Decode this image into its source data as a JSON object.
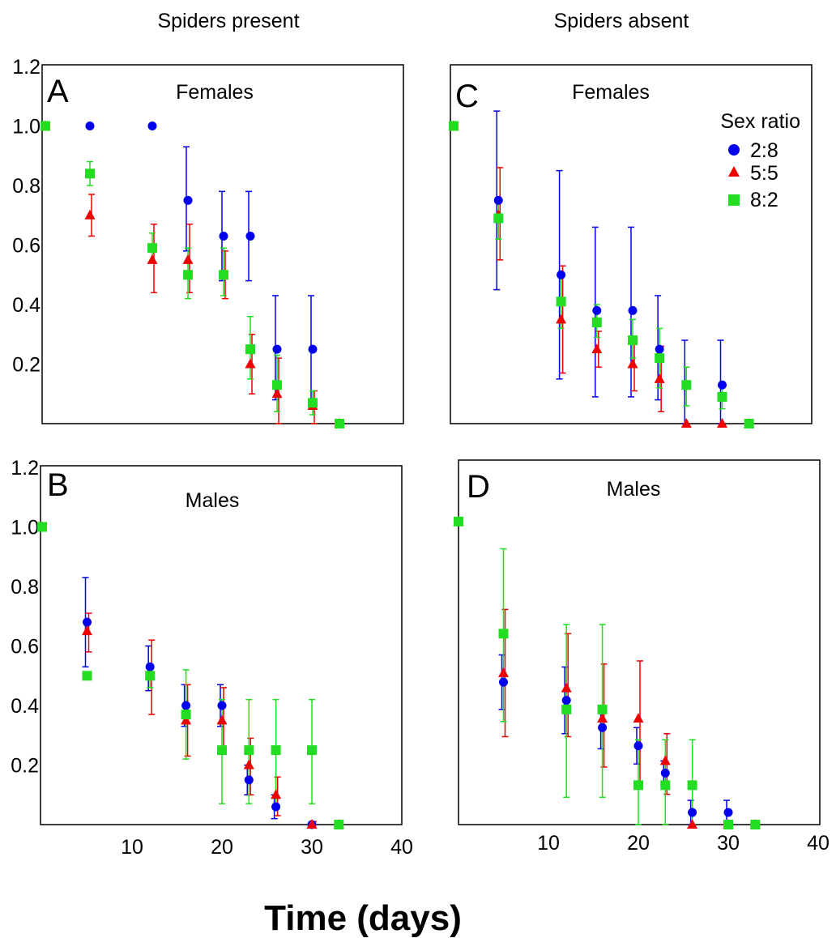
{
  "figure": {
    "column_titles": [
      "Spiders present",
      "Spiders absent"
    ],
    "xlabel": "Time (days)"
  },
  "chart_data": [
    {
      "panel": "A",
      "column": "Spiders present",
      "title": "Females",
      "type": "scatter",
      "xlim": [
        0,
        40
      ],
      "ylim": [
        0,
        1.2
      ],
      "yticks": [
        "1.2",
        "1.0",
        "0.8",
        "0.6",
        "0.4",
        "0.2"
      ],
      "xticks": [],
      "series": [
        {
          "name": "2:8",
          "color": "#0000ee",
          "marker": "circle",
          "points": [
            {
              "x": 0,
              "y": 1.0,
              "lo": 1.0,
              "hi": 1.0
            },
            {
              "x": 5,
              "y": 1.0,
              "lo": 1.0,
              "hi": 1.0
            },
            {
              "x": 12,
              "y": 1.0,
              "lo": 1.0,
              "hi": 1.0
            },
            {
              "x": 16,
              "y": 0.75,
              "lo": 0.58,
              "hi": 0.93
            },
            {
              "x": 20,
              "y": 0.63,
              "lo": 0.48,
              "hi": 0.78
            },
            {
              "x": 23,
              "y": 0.63,
              "lo": 0.48,
              "hi": 0.78
            },
            {
              "x": 26,
              "y": 0.25,
              "lo": 0.08,
              "hi": 0.43
            },
            {
              "x": 30,
              "y": 0.25,
              "lo": 0.08,
              "hi": 0.43
            },
            {
              "x": 33,
              "y": 0.0,
              "lo": 0.0,
              "hi": 0.0
            }
          ]
        },
        {
          "name": "5:5",
          "color": "#ee0000",
          "marker": "triangle",
          "points": [
            {
              "x": 0,
              "y": 1.0,
              "lo": 1.0,
              "hi": 1.0
            },
            {
              "x": 5,
              "y": 0.7,
              "lo": 0.63,
              "hi": 0.77
            },
            {
              "x": 12,
              "y": 0.55,
              "lo": 0.44,
              "hi": 0.67
            },
            {
              "x": 16,
              "y": 0.55,
              "lo": 0.44,
              "hi": 0.67
            },
            {
              "x": 20,
              "y": 0.5,
              "lo": 0.42,
              "hi": 0.58
            },
            {
              "x": 23,
              "y": 0.2,
              "lo": 0.1,
              "hi": 0.3
            },
            {
              "x": 26,
              "y": 0.1,
              "lo": 0.0,
              "hi": 0.22
            },
            {
              "x": 30,
              "y": 0.06,
              "lo": 0.0,
              "hi": 0.11
            },
            {
              "x": 33,
              "y": 0.0,
              "lo": 0.0,
              "hi": 0.0
            }
          ]
        },
        {
          "name": "8:2",
          "color": "#22dd22",
          "marker": "square",
          "points": [
            {
              "x": 0,
              "y": 1.0,
              "lo": 1.0,
              "hi": 1.0
            },
            {
              "x": 5,
              "y": 0.84,
              "lo": 0.8,
              "hi": 0.88
            },
            {
              "x": 12,
              "y": 0.59,
              "lo": 0.54,
              "hi": 0.64
            },
            {
              "x": 16,
              "y": 0.5,
              "lo": 0.42,
              "hi": 0.59
            },
            {
              "x": 20,
              "y": 0.5,
              "lo": 0.43,
              "hi": 0.59
            },
            {
              "x": 23,
              "y": 0.25,
              "lo": 0.15,
              "hi": 0.36
            },
            {
              "x": 26,
              "y": 0.13,
              "lo": 0.04,
              "hi": 0.23
            },
            {
              "x": 30,
              "y": 0.07,
              "lo": 0.03,
              "hi": 0.11
            },
            {
              "x": 33,
              "y": 0.0,
              "lo": 0.0,
              "hi": 0.0
            }
          ]
        }
      ]
    },
    {
      "panel": "B",
      "column": "Spiders present",
      "title": "Males",
      "type": "scatter",
      "xlim": [
        0,
        40
      ],
      "ylim": [
        0,
        1.2
      ],
      "yticks": [
        "1.2",
        "1.0",
        "0.8",
        "0.6",
        "0.4",
        "0.2"
      ],
      "xticks": [
        "10",
        "20",
        "30",
        "40"
      ],
      "series": [
        {
          "name": "2:8",
          "color": "#0000ee",
          "marker": "circle",
          "points": [
            {
              "x": 0,
              "y": 1.0,
              "lo": 1.0,
              "hi": 1.0
            },
            {
              "x": 5,
              "y": 0.68,
              "lo": 0.53,
              "hi": 0.83
            },
            {
              "x": 12,
              "y": 0.53,
              "lo": 0.45,
              "hi": 0.6
            },
            {
              "x": 16,
              "y": 0.4,
              "lo": 0.33,
              "hi": 0.47
            },
            {
              "x": 20,
              "y": 0.4,
              "lo": 0.33,
              "hi": 0.47
            },
            {
              "x": 23,
              "y": 0.15,
              "lo": 0.1,
              "hi": 0.2
            },
            {
              "x": 26,
              "y": 0.06,
              "lo": 0.02,
              "hi": 0.1
            },
            {
              "x": 30,
              "y": 0.0,
              "lo": 0.0,
              "hi": 0.0
            },
            {
              "x": 33,
              "y": 0.0,
              "lo": 0.0,
              "hi": 0.0
            }
          ]
        },
        {
          "name": "5:5",
          "color": "#ee0000",
          "marker": "triangle",
          "points": [
            {
              "x": 0,
              "y": 1.0,
              "lo": 1.0,
              "hi": 1.0
            },
            {
              "x": 5,
              "y": 0.65,
              "lo": 0.58,
              "hi": 0.71
            },
            {
              "x": 12,
              "y": 0.5,
              "lo": 0.37,
              "hi": 0.62
            },
            {
              "x": 16,
              "y": 0.35,
              "lo": 0.23,
              "hi": 0.47
            },
            {
              "x": 20,
              "y": 0.35,
              "lo": 0.25,
              "hi": 0.46
            },
            {
              "x": 23,
              "y": 0.2,
              "lo": 0.1,
              "hi": 0.29
            },
            {
              "x": 26,
              "y": 0.1,
              "lo": 0.03,
              "hi": 0.16
            },
            {
              "x": 30,
              "y": 0.0,
              "lo": 0.0,
              "hi": 0.01
            },
            {
              "x": 33,
              "y": 0.0,
              "lo": 0.0,
              "hi": 0.0
            }
          ]
        },
        {
          "name": "8:2",
          "color": "#22dd22",
          "marker": "square",
          "points": [
            {
              "x": 0,
              "y": 1.0,
              "lo": 1.0,
              "hi": 1.0
            },
            {
              "x": 5,
              "y": 0.5,
              "lo": 0.5,
              "hi": 0.5
            },
            {
              "x": 12,
              "y": 0.5,
              "lo": 0.46,
              "hi": 0.54
            },
            {
              "x": 16,
              "y": 0.37,
              "lo": 0.22,
              "hi": 0.52
            },
            {
              "x": 20,
              "y": 0.25,
              "lo": 0.07,
              "hi": 0.42
            },
            {
              "x": 23,
              "y": 0.25,
              "lo": 0.07,
              "hi": 0.42
            },
            {
              "x": 26,
              "y": 0.25,
              "lo": 0.07,
              "hi": 0.42
            },
            {
              "x": 30,
              "y": 0.25,
              "lo": 0.07,
              "hi": 0.42
            },
            {
              "x": 33,
              "y": 0.0,
              "lo": 0.0,
              "hi": 0.01
            }
          ]
        }
      ]
    },
    {
      "panel": "C",
      "column": "Spiders absent",
      "title": "Females",
      "type": "scatter",
      "xlim": [
        0,
        40
      ],
      "ylim": [
        0,
        1.2
      ],
      "yticks": [],
      "xticks": [],
      "legend": {
        "title": "Sex ratio",
        "placement": "top-right",
        "entries": [
          "2:8",
          "5:5",
          "8:2"
        ]
      },
      "series": [
        {
          "name": "2:8",
          "color": "#0000ee",
          "marker": "circle",
          "points": [
            {
              "x": 0,
              "y": 1.0,
              "lo": 1.0,
              "hi": 1.0
            },
            {
              "x": 5,
              "y": 0.75,
              "lo": 0.45,
              "hi": 1.05
            },
            {
              "x": 12,
              "y": 0.5,
              "lo": 0.15,
              "hi": 0.85
            },
            {
              "x": 16,
              "y": 0.38,
              "lo": 0.09,
              "hi": 0.66
            },
            {
              "x": 20,
              "y": 0.38,
              "lo": 0.09,
              "hi": 0.66
            },
            {
              "x": 23,
              "y": 0.25,
              "lo": 0.08,
              "hi": 0.43
            },
            {
              "x": 26,
              "y": 0.13,
              "lo": 0.0,
              "hi": 0.28
            },
            {
              "x": 30,
              "y": 0.13,
              "lo": 0.0,
              "hi": 0.28
            },
            {
              "x": 33,
              "y": 0.0,
              "lo": 0.0,
              "hi": 0.0
            }
          ]
        },
        {
          "name": "5:5",
          "color": "#ee0000",
          "marker": "triangle",
          "points": [
            {
              "x": 0,
              "y": 1.0,
              "lo": 1.0,
              "hi": 1.0
            },
            {
              "x": 5,
              "y": 0.7,
              "lo": 0.55,
              "hi": 0.86
            },
            {
              "x": 12,
              "y": 0.35,
              "lo": 0.17,
              "hi": 0.53
            },
            {
              "x": 16,
              "y": 0.25,
              "lo": 0.19,
              "hi": 0.31
            },
            {
              "x": 20,
              "y": 0.2,
              "lo": 0.11,
              "hi": 0.29
            },
            {
              "x": 23,
              "y": 0.15,
              "lo": 0.04,
              "hi": 0.26
            },
            {
              "x": 26,
              "y": 0.0,
              "lo": 0.0,
              "hi": 0.0
            },
            {
              "x": 30,
              "y": 0.0,
              "lo": 0.0,
              "hi": 0.0
            },
            {
              "x": 33,
              "y": 0.0,
              "lo": 0.0,
              "hi": 0.0
            }
          ]
        },
        {
          "name": "8:2",
          "color": "#22dd22",
          "marker": "square",
          "points": [
            {
              "x": 0,
              "y": 1.0,
              "lo": 1.0,
              "hi": 1.0
            },
            {
              "x": 5,
              "y": 0.69,
              "lo": 0.62,
              "hi": 0.76
            },
            {
              "x": 12,
              "y": 0.41,
              "lo": 0.32,
              "hi": 0.5
            },
            {
              "x": 16,
              "y": 0.34,
              "lo": 0.29,
              "hi": 0.4
            },
            {
              "x": 20,
              "y": 0.28,
              "lo": 0.22,
              "hi": 0.35
            },
            {
              "x": 23,
              "y": 0.22,
              "lo": 0.12,
              "hi": 0.32
            },
            {
              "x": 26,
              "y": 0.13,
              "lo": 0.06,
              "hi": 0.19
            },
            {
              "x": 30,
              "y": 0.09,
              "lo": 0.05,
              "hi": 0.13
            },
            {
              "x": 33,
              "y": 0.0,
              "lo": 0.0,
              "hi": 0.0
            }
          ]
        }
      ]
    },
    {
      "panel": "D",
      "column": "Spiders absent",
      "title": "Males",
      "type": "scatter",
      "xlim": [
        0,
        40
      ],
      "ylim": [
        0,
        1.2
      ],
      "yticks": [],
      "xticks": [
        "10",
        "20",
        "30",
        "40"
      ],
      "series": [
        {
          "name": "2:8",
          "color": "#0000ee",
          "marker": "circle",
          "points": [
            {
              "x": 0,
              "y": 1.0,
              "lo": 1.0,
              "hi": 1.0
            },
            {
              "x": 5,
              "y": 0.47,
              "lo": 0.38,
              "hi": 0.56
            },
            {
              "x": 12,
              "y": 0.41,
              "lo": 0.3,
              "hi": 0.52
            },
            {
              "x": 16,
              "y": 0.32,
              "lo": 0.25,
              "hi": 0.39
            },
            {
              "x": 20,
              "y": 0.26,
              "lo": 0.2,
              "hi": 0.32
            },
            {
              "x": 23,
              "y": 0.17,
              "lo": 0.13,
              "hi": 0.21
            },
            {
              "x": 26,
              "y": 0.04,
              "lo": 0.0,
              "hi": 0.08
            },
            {
              "x": 30,
              "y": 0.04,
              "lo": 0.0,
              "hi": 0.08
            },
            {
              "x": 33,
              "y": 0.0,
              "lo": 0.0,
              "hi": 0.0
            }
          ]
        },
        {
          "name": "5:5",
          "color": "#ee0000",
          "marker": "triangle",
          "points": [
            {
              "x": 0,
              "y": 1.0,
              "lo": 1.0,
              "hi": 1.0
            },
            {
              "x": 5,
              "y": 0.5,
              "lo": 0.29,
              "hi": 0.71
            },
            {
              "x": 12,
              "y": 0.45,
              "lo": 0.29,
              "hi": 0.63
            },
            {
              "x": 16,
              "y": 0.35,
              "lo": 0.19,
              "hi": 0.53
            },
            {
              "x": 20,
              "y": 0.35,
              "lo": 0.13,
              "hi": 0.54
            },
            {
              "x": 23,
              "y": 0.21,
              "lo": 0.1,
              "hi": 0.3
            },
            {
              "x": 26,
              "y": 0.0,
              "lo": 0.0,
              "hi": 0.0
            },
            {
              "x": 30,
              "y": 0.0,
              "lo": 0.0,
              "hi": 0.0
            },
            {
              "x": 33,
              "y": 0.0,
              "lo": 0.0,
              "hi": 0.0
            }
          ]
        },
        {
          "name": "8:2",
          "color": "#22dd22",
          "marker": "square",
          "points": [
            {
              "x": 0,
              "y": 1.0,
              "lo": 1.0,
              "hi": 1.0
            },
            {
              "x": 5,
              "y": 0.63,
              "lo": 0.34,
              "hi": 0.91
            },
            {
              "x": 12,
              "y": 0.38,
              "lo": 0.09,
              "hi": 0.66
            },
            {
              "x": 16,
              "y": 0.38,
              "lo": 0.09,
              "hi": 0.66
            },
            {
              "x": 20,
              "y": 0.13,
              "lo": 0.0,
              "hi": 0.28
            },
            {
              "x": 23,
              "y": 0.13,
              "lo": 0.0,
              "hi": 0.28
            },
            {
              "x": 26,
              "y": 0.13,
              "lo": 0.0,
              "hi": 0.28
            },
            {
              "x": 30,
              "y": 0.0,
              "lo": 0.0,
              "hi": 0.0
            },
            {
              "x": 33,
              "y": 0.0,
              "lo": 0.0,
              "hi": 0.0
            }
          ]
        }
      ]
    }
  ]
}
